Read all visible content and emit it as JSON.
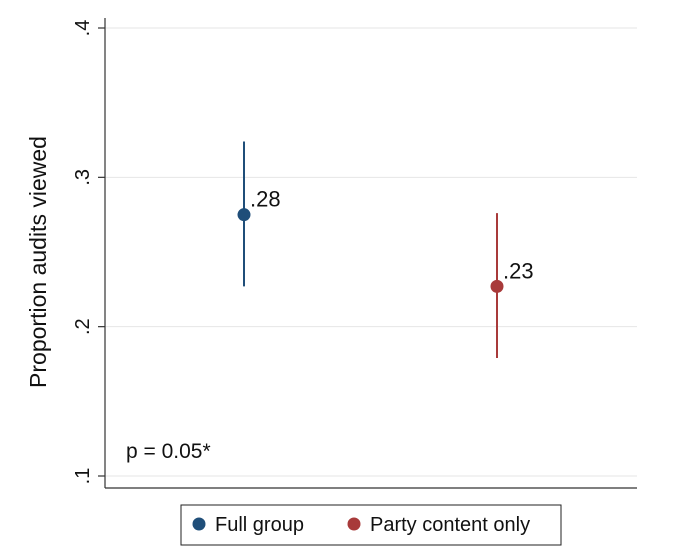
{
  "chart_data": {
    "type": "scatter",
    "title": "",
    "xlabel": "",
    "ylabel": "Proportion audits viewed",
    "ylim": [
      0.1,
      0.4
    ],
    "yticks": [
      {
        "value": 0.1,
        "label": ".1"
      },
      {
        "value": 0.2,
        "label": ".2"
      },
      {
        "value": 0.3,
        "label": ".3"
      },
      {
        "value": 0.4,
        "label": ".4"
      }
    ],
    "grid": true,
    "legend_position": "bottom",
    "annotation": "p = 0.05*",
    "series": [
      {
        "name": "Full group",
        "value": 0.275,
        "ci": [
          0.227,
          0.324
        ],
        "label": ".28",
        "color": "#1f4e79"
      },
      {
        "name": "Party content only",
        "value": 0.227,
        "ci": [
          0.179,
          0.276
        ],
        "label": ".23",
        "color": "#a83a3a"
      }
    ]
  }
}
